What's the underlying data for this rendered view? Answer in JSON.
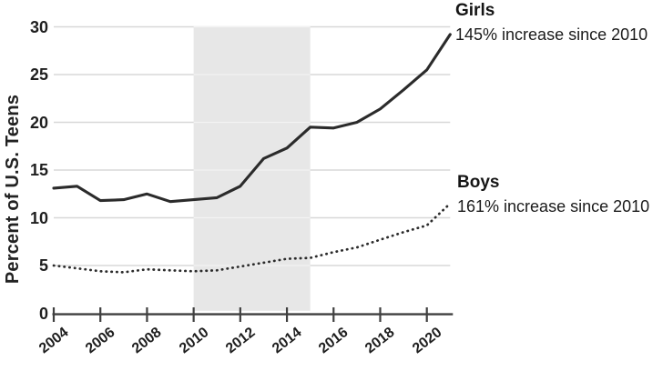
{
  "chart_data": {
    "type": "line",
    "title": "",
    "xlabel": "",
    "ylabel": "Percent of U.S. Teens",
    "ylim": [
      0,
      30
    ],
    "xlim": [
      2004,
      2021
    ],
    "grid": true,
    "yticks": [
      0,
      5,
      10,
      15,
      20,
      25,
      30
    ],
    "xticks": [
      2004,
      2006,
      2008,
      2010,
      2012,
      2014,
      2016,
      2018,
      2020
    ],
    "x": [
      2004,
      2005,
      2006,
      2007,
      2008,
      2009,
      2010,
      2011,
      2012,
      2013,
      2014,
      2015,
      2016,
      2017,
      2018,
      2019,
      2020,
      2021
    ],
    "series": [
      {
        "name": "Girls",
        "annotation": "145% increase since 2010",
        "line_style": "solid",
        "values": [
          13.1,
          13.3,
          11.8,
          11.9,
          12.5,
          11.7,
          11.9,
          12.1,
          13.3,
          16.2,
          17.3,
          19.5,
          19.4,
          20.0,
          21.4,
          23.4,
          25.5,
          29.2
        ]
      },
      {
        "name": "Boys",
        "annotation": "161% increase since 2010",
        "line_style": "dotted",
        "values": [
          5.0,
          4.7,
          4.4,
          4.3,
          4.6,
          4.5,
          4.4,
          4.5,
          4.9,
          5.3,
          5.7,
          5.8,
          6.4,
          6.9,
          7.7,
          8.5,
          9.2,
          11.5
        ]
      }
    ],
    "shaded_region": {
      "from_year": 2010,
      "to_year": 2015
    },
    "legend_position": "right-of-line-ends",
    "colors": {
      "line": "#2b2b2b",
      "grid": "#d8d8d8",
      "grid_over_band": "#f3f3f3",
      "band": "#e7e7e7",
      "axis": "#3f3f3f",
      "text": "#1b1b1b"
    }
  }
}
